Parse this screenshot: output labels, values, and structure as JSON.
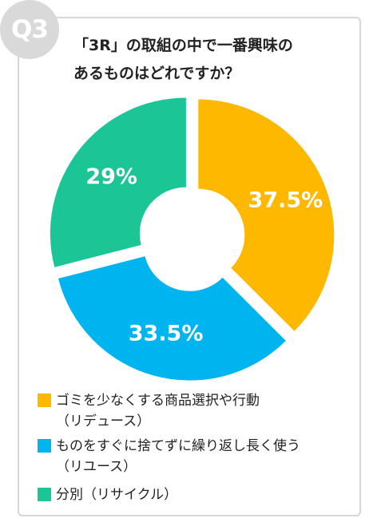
{
  "badge": "Q3",
  "title": {
    "line1": "「3R」の取組の中で一番興味の",
    "line2": "あるものはどれですか？"
  },
  "chart_data": {
    "type": "pie",
    "donut": true,
    "categories": [
      "ゴミを少なくする商品選択や行動（リデュース）",
      "ものをすぐに捨てずに繰り返し長く使う（リユース）",
      "分別（リサイクル）"
    ],
    "values": [
      37.5,
      33.5,
      29
    ],
    "labels": [
      "37.5%",
      "33.5%",
      "29%"
    ],
    "colors": [
      "#FFB800",
      "#00B4F0",
      "#1BC596"
    ]
  },
  "legend": [
    {
      "line1": "ゴミを少なくする商品選択や行動",
      "line2": "（リデュース）",
      "color": "#FFB800"
    },
    {
      "line1": "ものをすぐに捨てずに繰り返し長く使う",
      "line2": "（リユース）",
      "color": "#00B4F0"
    },
    {
      "line1": "分別（リサイクル）",
      "line2": "",
      "color": "#1BC596"
    }
  ]
}
